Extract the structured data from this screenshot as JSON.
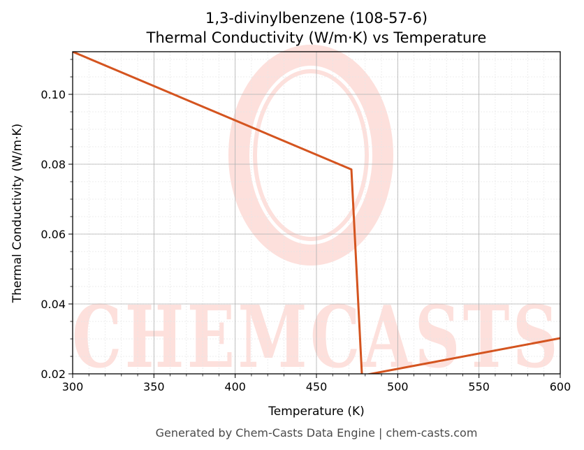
{
  "chart_data": {
    "type": "line",
    "title_line1": "1,3-divinylbenzene (108-57-6)",
    "title_line2": "Thermal Conductivity (W/m·K) vs Temperature",
    "xlabel": "Temperature (K)",
    "ylabel": "Thermal Conductivity (W/m·K)",
    "xlim": [
      300,
      600
    ],
    "ylim": [
      0.02,
      0.1122
    ],
    "xticks": [
      300,
      350,
      400,
      450,
      500,
      550,
      600
    ],
    "xtick_labels": [
      "300",
      "350",
      "400",
      "450",
      "500",
      "550",
      "600"
    ],
    "yticks": [
      0.02,
      0.04,
      0.06,
      0.08,
      0.1
    ],
    "ytick_labels": [
      "0.02",
      "0.04",
      "0.06",
      "0.08",
      "0.10"
    ],
    "grid": true,
    "series": [
      {
        "color": "#d4541f",
        "x": [
          300,
          471.5,
          478,
          600
        ],
        "y": [
          0.1122,
          0.0785,
          0.0195,
          0.0302
        ]
      }
    ]
  },
  "watermark": {
    "text": "CHEMCASTS",
    "color": "#fde0dc"
  },
  "footer": "Generated by Chem-Casts Data Engine | chem-casts.com"
}
